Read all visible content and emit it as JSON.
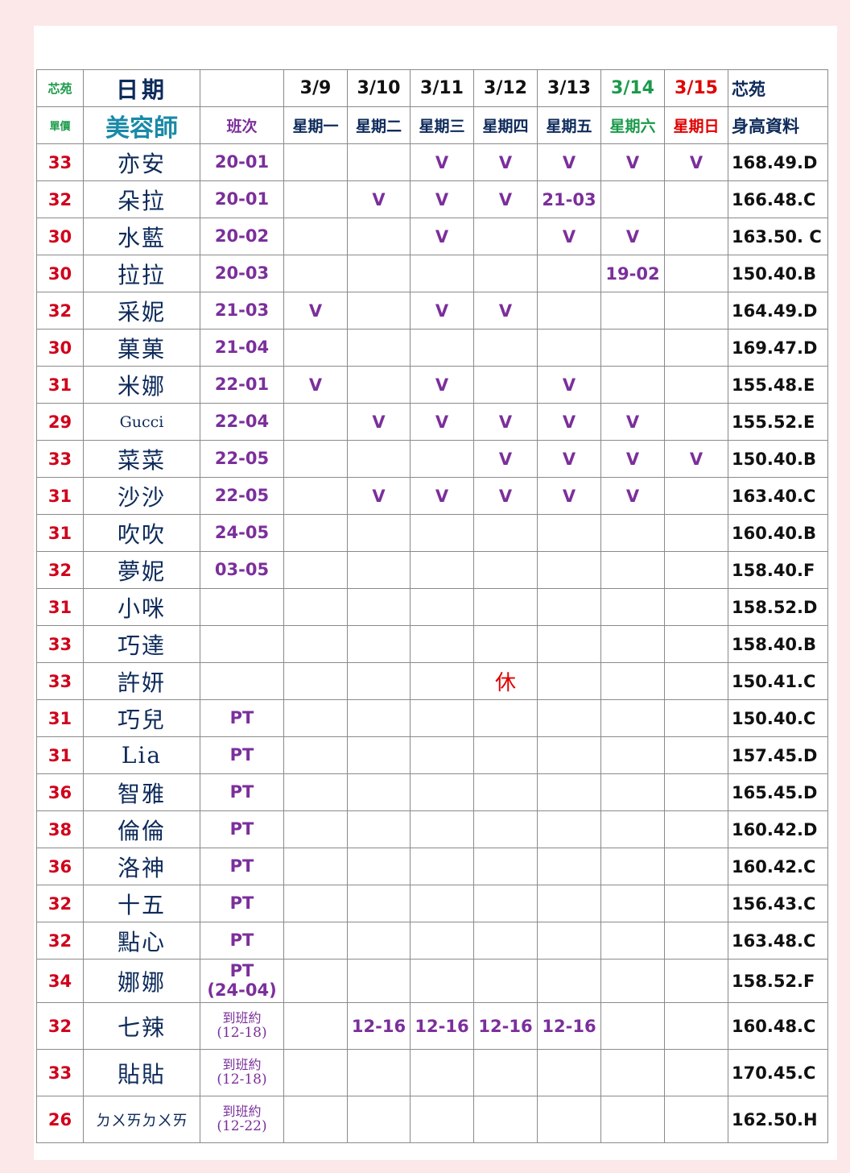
{
  "header": {
    "brand": "芯苑",
    "date_label": "日期",
    "price_label": "單價",
    "beautician_label": "美容師",
    "shift_label": "班次",
    "dates": [
      "3/9",
      "3/10",
      "3/11",
      "3/12",
      "3/13",
      "3/14",
      "3/15"
    ],
    "weekdays": [
      "星期一",
      "星期二",
      "星期三",
      "星期四",
      "星期五",
      "星期六",
      "星期日"
    ],
    "last_col_top": "芯苑",
    "last_col_bottom": "身高資料"
  },
  "colors": {
    "price": "#d0021b",
    "name": "#0d2a5a",
    "shift": "#7b2f9b",
    "saturday": "#1a9a4a",
    "sunday": "#e00000",
    "brand": "#1a9a4a",
    "beautician": "#1a8aa8"
  },
  "rows": [
    {
      "price": "33",
      "name": "亦安",
      "shift": "20-01",
      "days": [
        "",
        "",
        "V",
        "V",
        "V",
        "V",
        "V"
      ],
      "height": "168.49.D"
    },
    {
      "price": "32",
      "name": "朵拉",
      "shift": "20-01",
      "days": [
        "",
        "V",
        "V",
        "V",
        "21-03",
        "",
        ""
      ],
      "height": "166.48.C"
    },
    {
      "price": "30",
      "name": "水藍",
      "shift": "20-02",
      "days": [
        "",
        "",
        "V",
        "",
        "V",
        "V",
        ""
      ],
      "height": "163.50. C"
    },
    {
      "price": "30",
      "name": "拉拉",
      "shift": "20-03",
      "days": [
        "",
        "",
        "",
        "",
        "",
        "19-02",
        ""
      ],
      "height": "150.40.B"
    },
    {
      "price": "32",
      "name": "采妮",
      "shift": "21-03",
      "days": [
        "V",
        "",
        "V",
        "V",
        "",
        "",
        ""
      ],
      "height": "164.49.D"
    },
    {
      "price": "30",
      "name": "菓菓",
      "shift": "21-04",
      "days": [
        "",
        "",
        "",
        "",
        "",
        "",
        ""
      ],
      "height": "169.47.D"
    },
    {
      "price": "31",
      "name": "米娜",
      "shift": "22-01",
      "days": [
        "V",
        "",
        "V",
        "",
        "V",
        "",
        ""
      ],
      "height": "155.48.E"
    },
    {
      "price": "29",
      "name": "Gucci",
      "shift": "22-04",
      "days": [
        "",
        "V",
        "V",
        "V",
        "V",
        "V",
        ""
      ],
      "height": "155.52.E"
    },
    {
      "price": "33",
      "name": "菜菜",
      "shift": "22-05",
      "days": [
        "",
        "",
        "",
        "V",
        "V",
        "V",
        "V"
      ],
      "height": "150.40.B"
    },
    {
      "price": "31",
      "name": "沙沙",
      "shift": "22-05",
      "days": [
        "",
        "V",
        "V",
        "V",
        "V",
        "V",
        ""
      ],
      "height": "163.40.C"
    },
    {
      "price": "31",
      "name": "吹吹",
      "shift": "24-05",
      "days": [
        "",
        "",
        "",
        "",
        "",
        "",
        ""
      ],
      "height": "160.40.B"
    },
    {
      "price": "32",
      "name": "夢妮",
      "shift": "03-05",
      "days": [
        "",
        "",
        "",
        "",
        "",
        "",
        ""
      ],
      "height": "158.40.F"
    },
    {
      "price": "31",
      "name": "小咪",
      "shift": "",
      "days": [
        "",
        "",
        "",
        "",
        "",
        "",
        ""
      ],
      "height": "158.52.D"
    },
    {
      "price": "33",
      "name": "巧達",
      "shift": "",
      "days": [
        "",
        "",
        "",
        "",
        "",
        "",
        ""
      ],
      "height": "158.40.B"
    },
    {
      "price": "33",
      "name": "許妍",
      "shift": "",
      "days": [
        "",
        "",
        "",
        "休",
        "",
        "",
        ""
      ],
      "height": "150.41.C"
    },
    {
      "price": "31",
      "name": "巧兒",
      "shift": "PT",
      "days": [
        "",
        "",
        "",
        "",
        "",
        "",
        ""
      ],
      "height": "150.40.C"
    },
    {
      "price": "31",
      "name": "Lia",
      "shift": "PT",
      "days": [
        "",
        "",
        "",
        "",
        "",
        "",
        ""
      ],
      "height": "157.45.D"
    },
    {
      "price": "36",
      "name": "智雅",
      "shift": "PT",
      "days": [
        "",
        "",
        "",
        "",
        "",
        "",
        ""
      ],
      "height": "165.45.D"
    },
    {
      "price": "38",
      "name": "倫倫",
      "shift": "PT",
      "days": [
        "",
        "",
        "",
        "",
        "",
        "",
        ""
      ],
      "height": "160.42.D"
    },
    {
      "price": "36",
      "name": "洛神",
      "shift": "PT",
      "days": [
        "",
        "",
        "",
        "",
        "",
        "",
        ""
      ],
      "height": "160.42.C"
    },
    {
      "price": "32",
      "name": "十五",
      "shift": "PT",
      "days": [
        "",
        "",
        "",
        "",
        "",
        "",
        ""
      ],
      "height": "156.43.C"
    },
    {
      "price": "32",
      "name": "點心",
      "shift": "PT",
      "days": [
        "",
        "",
        "",
        "",
        "",
        "",
        ""
      ],
      "height": "163.48.C"
    },
    {
      "price": "34",
      "name": "娜娜",
      "shift": "PT",
      "shift_sub": "(24-04)",
      "days": [
        "",
        "",
        "",
        "",
        "",
        "",
        ""
      ],
      "height": "158.52.F"
    },
    {
      "price": "32",
      "name": "七辣",
      "shift": "到班約",
      "shift_sub": "(12-18)",
      "days": [
        "",
        "12-16",
        "12-16",
        "12-16",
        "12-16",
        "",
        ""
      ],
      "height": "160.48.C"
    },
    {
      "price": "33",
      "name": "貼貼",
      "shift": "到班約",
      "shift_sub": "(12-18)",
      "days": [
        "",
        "",
        "",
        "",
        "",
        "",
        ""
      ],
      "height": "170.45.C"
    },
    {
      "price": "26",
      "name": "ㄉㄨㄞㄉㄨㄞ",
      "shift": "到班約",
      "shift_sub": "(12-22)",
      "days": [
        "",
        "",
        "",
        "",
        "",
        "",
        ""
      ],
      "height": "162.50.H"
    }
  ]
}
